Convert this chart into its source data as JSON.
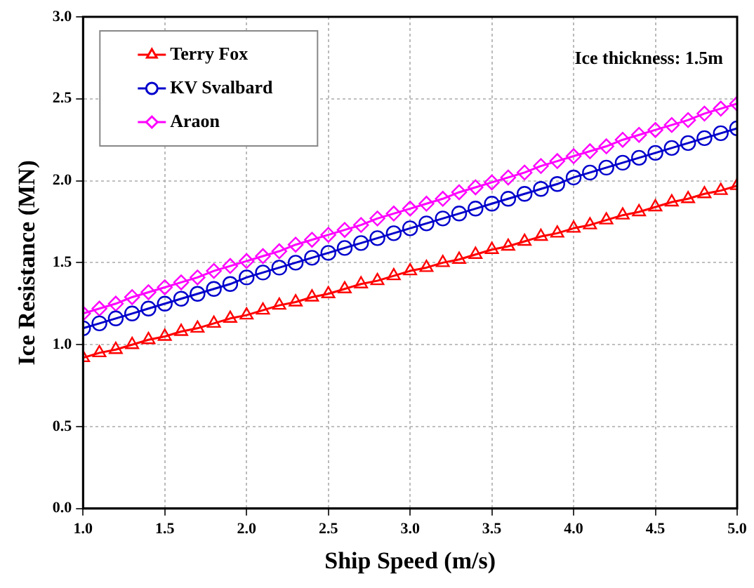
{
  "chart_data": {
    "type": "line",
    "xlabel": "Ship Speed (m/s)",
    "ylabel": "Ice Resistance (MN)",
    "annotations": [
      "Ice thickness: 1.5m"
    ],
    "x": [
      1.0,
      1.1,
      1.2,
      1.3,
      1.4,
      1.5,
      1.6,
      1.7,
      1.8,
      1.9,
      2.0,
      2.1,
      2.2,
      2.3,
      2.4,
      2.5,
      2.6,
      2.7,
      2.8,
      2.9,
      3.0,
      3.1,
      3.2,
      3.3,
      3.4,
      3.5,
      3.6,
      3.7,
      3.8,
      3.9,
      4.0,
      4.1,
      4.2,
      4.3,
      4.4,
      4.5,
      4.6,
      4.7,
      4.8,
      4.9,
      5.0
    ],
    "series": [
      {
        "name": "Terry Fox",
        "color": "#ff0000",
        "marker": "triangle",
        "values": [
          0.92,
          0.95,
          0.97,
          1.0,
          1.03,
          1.05,
          1.08,
          1.1,
          1.13,
          1.16,
          1.18,
          1.21,
          1.24,
          1.26,
          1.29,
          1.31,
          1.34,
          1.37,
          1.39,
          1.42,
          1.45,
          1.47,
          1.5,
          1.52,
          1.55,
          1.58,
          1.6,
          1.63,
          1.66,
          1.68,
          1.71,
          1.73,
          1.76,
          1.79,
          1.81,
          1.84,
          1.87,
          1.89,
          1.92,
          1.94,
          1.97
        ]
      },
      {
        "name": "KV Svalbard",
        "color": "#0000cc",
        "marker": "circle",
        "values": [
          1.1,
          1.13,
          1.16,
          1.19,
          1.22,
          1.25,
          1.28,
          1.31,
          1.34,
          1.37,
          1.41,
          1.44,
          1.47,
          1.5,
          1.53,
          1.56,
          1.59,
          1.62,
          1.65,
          1.68,
          1.71,
          1.74,
          1.77,
          1.8,
          1.83,
          1.86,
          1.89,
          1.92,
          1.95,
          1.98,
          2.02,
          2.05,
          2.08,
          2.11,
          2.14,
          2.17,
          2.2,
          2.23,
          2.26,
          2.29,
          2.32
        ]
      },
      {
        "name": "Araon",
        "color": "#ff00ff",
        "marker": "diamond",
        "values": [
          1.19,
          1.22,
          1.25,
          1.29,
          1.32,
          1.35,
          1.38,
          1.41,
          1.45,
          1.48,
          1.51,
          1.54,
          1.57,
          1.61,
          1.64,
          1.67,
          1.7,
          1.73,
          1.77,
          1.8,
          1.83,
          1.86,
          1.89,
          1.93,
          1.96,
          1.99,
          2.02,
          2.05,
          2.09,
          2.12,
          2.15,
          2.18,
          2.21,
          2.25,
          2.28,
          2.31,
          2.34,
          2.37,
          2.41,
          2.44,
          2.47
        ]
      }
    ],
    "xlim": [
      1.0,
      5.0
    ],
    "xticks": [
      {
        "value": 1.0,
        "label": "1.0"
      },
      {
        "value": 1.5,
        "label": "1.5"
      },
      {
        "value": 2.0,
        "label": "2.0"
      },
      {
        "value": 2.5,
        "label": "2.5"
      },
      {
        "value": 3.0,
        "label": "3.0"
      },
      {
        "value": 3.5,
        "label": "3.5"
      },
      {
        "value": 4.0,
        "label": "4.0"
      },
      {
        "value": 4.5,
        "label": "4.5"
      },
      {
        "value": 5.0,
        "label": "5.0"
      }
    ],
    "ylim": [
      0.0,
      3.0
    ],
    "yticks": [
      {
        "value": 0,
        "label": "0.0"
      },
      {
        "value": 0.5,
        "label": "0.5"
      },
      {
        "value": 1.0,
        "label": "1.0"
      },
      {
        "value": 1.5,
        "label": "1.5"
      },
      {
        "value": 2.0,
        "label": "2.0"
      },
      {
        "value": 2.5,
        "label": "2.5"
      },
      {
        "value": 3.0,
        "label": "3.0"
      }
    ],
    "grid": true,
    "legend": "top left",
    "line_style": "solid"
  }
}
